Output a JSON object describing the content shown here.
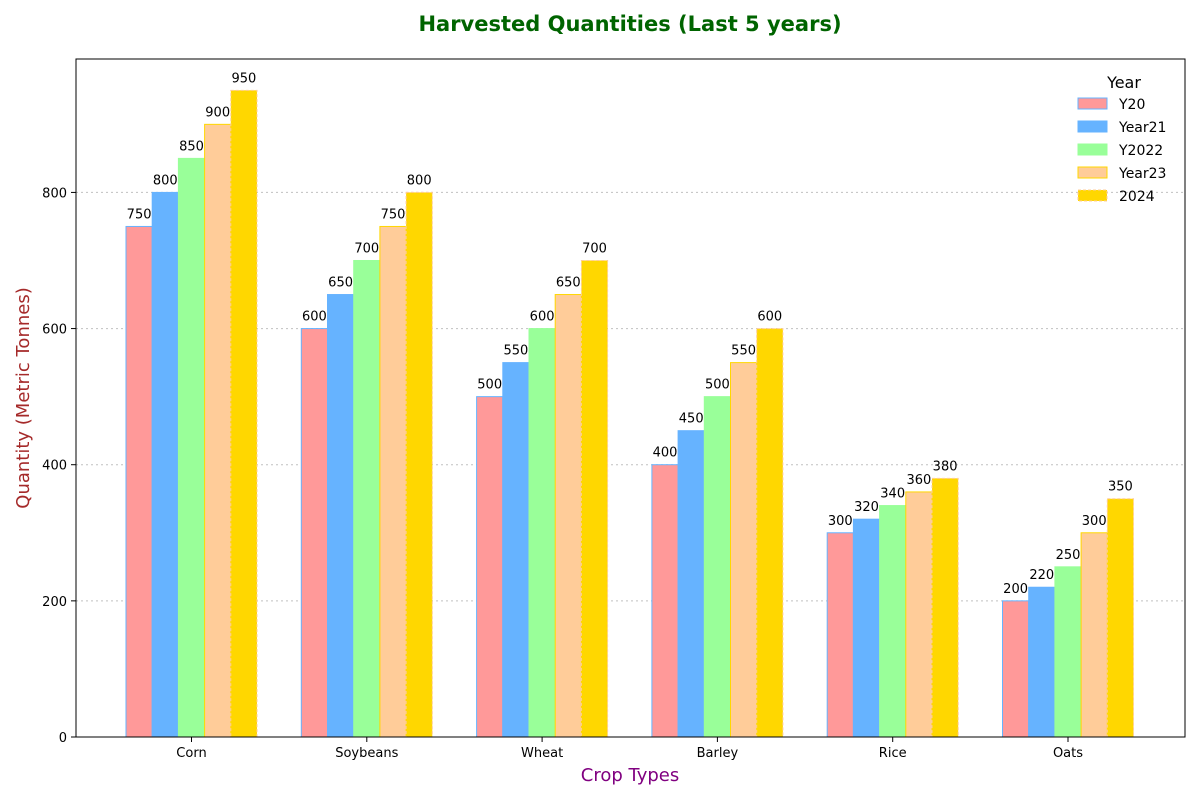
{
  "chart_data": {
    "type": "bar",
    "title": "Harvested Quantities (Last 5 years)",
    "xlabel": "Crop Types",
    "ylabel": "Quantity (Metric Tonnes)",
    "categories": [
      "Corn",
      "Soybeans",
      "Wheat",
      "Barley",
      "Rice",
      "Oats"
    ],
    "series": [
      {
        "name": "Y20",
        "values": [
          750,
          600,
          500,
          400,
          300,
          200
        ],
        "color": "#ff9999",
        "edge": "#66b3ff",
        "dashed": false
      },
      {
        "name": "Year21",
        "values": [
          800,
          650,
          550,
          450,
          320,
          220
        ],
        "color": "#66b3ff",
        "edge": "#66b3ff",
        "dashed": false
      },
      {
        "name": "Y2022",
        "values": [
          850,
          700,
          600,
          500,
          340,
          250
        ],
        "color": "#99ff99",
        "edge": "#99ff99",
        "dashed": false
      },
      {
        "name": "Year23",
        "values": [
          900,
          750,
          650,
          550,
          360,
          300
        ],
        "color": "#ffcc99",
        "edge": "#ffd700",
        "dashed": false
      },
      {
        "name": "2024",
        "values": [
          950,
          800,
          700,
          600,
          380,
          350
        ],
        "color": "#ffd700",
        "edge": "#ffcc99",
        "dashed": true
      }
    ],
    "ylim": [
      0,
      1000
    ],
    "yticks": [
      0,
      200,
      400,
      600,
      800
    ],
    "grid": "y-dotted",
    "legend": {
      "title": "Year",
      "position": "top-right"
    },
    "colors": {
      "title": "#006400",
      "xlabel": "#800080",
      "ylabel": "#a52a2a",
      "grid": "#c0c0c0"
    }
  }
}
